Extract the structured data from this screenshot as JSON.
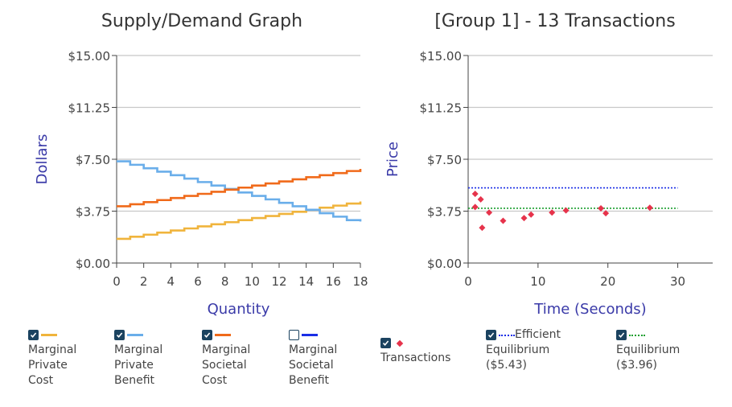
{
  "chart_data": [
    {
      "type": "line",
      "title": "Supply/Demand Graph",
      "xlabel": "Quantity",
      "ylabel": "Dollars",
      "xlim": [
        0,
        18
      ],
      "ylim": [
        0,
        15
      ],
      "x_ticks": [
        "0",
        "2",
        "4",
        "6",
        "8",
        "10",
        "12",
        "14",
        "16",
        "18"
      ],
      "y_ticks": [
        "$0.00",
        "$3.75",
        "$7.50",
        "$11.25",
        "$15.00"
      ],
      "y_tick_values": [
        0,
        3.75,
        7.5,
        11.25,
        15
      ],
      "grid": true,
      "step": true,
      "series": [
        {
          "name": "Marginal Private Cost",
          "color": "#f0b43c",
          "visible": true,
          "values": [
            1.75,
            1.9,
            2.05,
            2.2,
            2.35,
            2.5,
            2.65,
            2.8,
            2.95,
            3.1,
            3.25,
            3.4,
            3.55,
            3.7,
            3.85,
            4.0,
            4.15,
            4.3,
            4.45
          ]
        },
        {
          "name": "Marginal Private Benefit",
          "color": "#6aaeea",
          "visible": true,
          "values": [
            7.35,
            7.1,
            6.85,
            6.6,
            6.35,
            6.1,
            5.85,
            5.6,
            5.35,
            5.1,
            4.85,
            4.6,
            4.35,
            4.1,
            3.85,
            3.6,
            3.35,
            3.1,
            3.0
          ]
        },
        {
          "name": "Marginal Societal Cost",
          "color": "#f06a1a",
          "visible": true,
          "values": [
            4.1,
            4.25,
            4.4,
            4.55,
            4.7,
            4.85,
            5.0,
            5.15,
            5.3,
            5.45,
            5.6,
            5.75,
            5.9,
            6.05,
            6.2,
            6.35,
            6.5,
            6.65,
            6.8
          ]
        },
        {
          "name": "Marginal Societal Benefit",
          "color": "#1a2ee6",
          "visible": false,
          "values": []
        }
      ]
    },
    {
      "type": "scatter",
      "title": "[Group 1] - 13 Transactions",
      "xlabel": "Time (Seconds)",
      "ylabel": "Price",
      "xlim": [
        0,
        35
      ],
      "ylim": [
        0,
        15
      ],
      "x_ticks": [
        "0",
        "10",
        "20",
        "30"
      ],
      "x_tick_values": [
        0,
        10,
        20,
        30
      ],
      "y_ticks": [
        "$0.00",
        "$3.75",
        "$7.50",
        "$11.25",
        "$15.00"
      ],
      "y_tick_values": [
        0,
        3.75,
        7.5,
        11.25,
        15
      ],
      "grid": true,
      "points": [
        {
          "x": 1.0,
          "y": 5.0
        },
        {
          "x": 1.0,
          "y": 4.05
        },
        {
          "x": 1.8,
          "y": 4.6
        },
        {
          "x": 2.0,
          "y": 2.55
        },
        {
          "x": 3.0,
          "y": 3.65
        },
        {
          "x": 5.0,
          "y": 3.05
        },
        {
          "x": 8.0,
          "y": 3.25
        },
        {
          "x": 9.0,
          "y": 3.5
        },
        {
          "x": 12.0,
          "y": 3.65
        },
        {
          "x": 14.0,
          "y": 3.8
        },
        {
          "x": 19.0,
          "y": 3.95
        },
        {
          "x": 19.7,
          "y": 3.6
        },
        {
          "x": 26.0,
          "y": 4.0
        }
      ],
      "point_color": "#e6334b",
      "reference_lines": [
        {
          "name": "Efficient Equilibrium ($5.43)",
          "y": 5.43,
          "x_end": 30,
          "color": "#1a2ee6",
          "style": "dotted"
        },
        {
          "name": "Equilibrium ($3.96)",
          "y": 3.96,
          "x_end": 30,
          "color": "#1a9e2e",
          "style": "dotted"
        }
      ]
    }
  ],
  "legend": {
    "mpc": "Marginal\nPrivate\nCost",
    "mpb": "Marginal\nPrivate\nBenefit",
    "msc": "Marginal\nSocietal\nCost",
    "msb": "Marginal\nSocietal\nBenefit",
    "transactions": "Transactions",
    "efficient_first": "Efficient",
    "efficient_rest": "Equilibrium\n($5.43)",
    "equilibrium": "Equilibrium\n($3.96)"
  },
  "colors": {
    "mpc": "#f0b43c",
    "mpb": "#6aaeea",
    "msc": "#f06a1a",
    "msb": "#1a2ee6",
    "transactions": "#e6334b",
    "efficient": "#1a2ee6",
    "equilibrium": "#1a9e2e",
    "axis_label": "#3a3aa8",
    "checkbox": "#1b4360"
  }
}
